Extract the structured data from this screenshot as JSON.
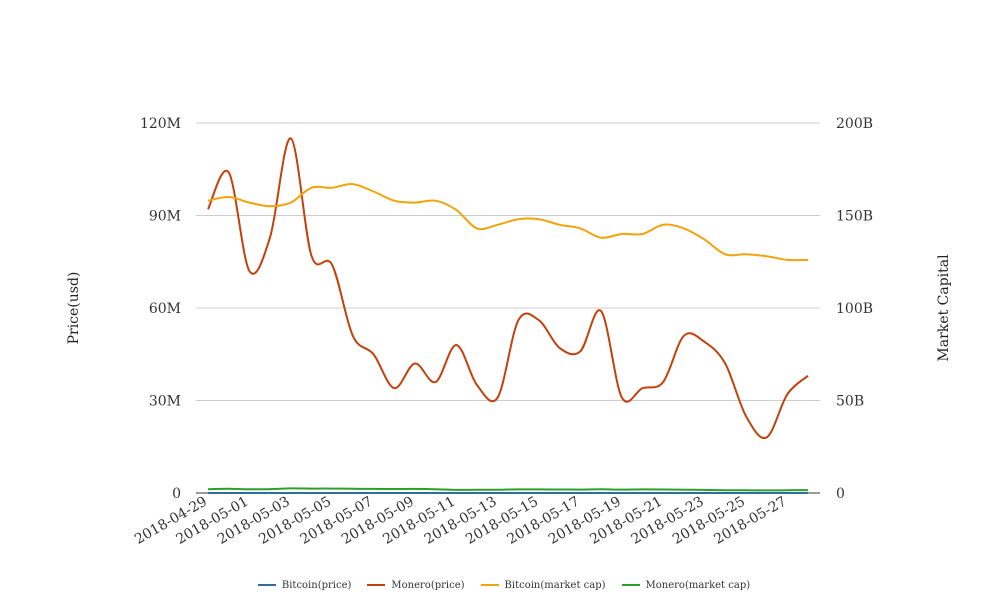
{
  "chart_data": {
    "type": "line",
    "title": "",
    "xlabel": "",
    "ylabel": "Price(usd)",
    "y2label": "Market Capital",
    "x": [
      "2018-04-29",
      "2018-04-30",
      "2018-05-01",
      "2018-05-02",
      "2018-05-03",
      "2018-05-04",
      "2018-05-05",
      "2018-05-06",
      "2018-05-07",
      "2018-05-08",
      "2018-05-09",
      "2018-05-10",
      "2018-05-11",
      "2018-05-12",
      "2018-05-13",
      "2018-05-14",
      "2018-05-15",
      "2018-05-16",
      "2018-05-17",
      "2018-05-18",
      "2018-05-19",
      "2018-05-20",
      "2018-05-21",
      "2018-05-22",
      "2018-05-23",
      "2018-05-24",
      "2018-05-25",
      "2018-05-26",
      "2018-05-27",
      "2018-05-28"
    ],
    "x_tick_labels": [
      "2018-04-29",
      "2018-05-01",
      "2018-05-03",
      "2018-05-05",
      "2018-05-07",
      "2018-05-09",
      "2018-05-11",
      "2018-05-13",
      "2018-05-15",
      "2018-05-17",
      "2018-05-19",
      "2018-05-21",
      "2018-05-23",
      "2018-05-25",
      "2018-05-27"
    ],
    "ylim": [
      0,
      120000000
    ],
    "y_ticks": [
      0,
      30000000,
      60000000,
      90000000,
      120000000
    ],
    "y_tick_labels": [
      "0",
      "30M",
      "60M",
      "90M",
      "120M"
    ],
    "y2lim": [
      0,
      200000000000
    ],
    "y2_ticks": [
      0,
      50000000000,
      100000000000,
      150000000000,
      200000000000
    ],
    "y2_tick_labels": [
      "0",
      "50B",
      "100B",
      "150B",
      "200B"
    ],
    "legend_position": "bottom",
    "grid": true,
    "series": [
      {
        "name": "Bitcoin(price)",
        "axis": "left",
        "color": "#2f6fa0",
        "values": [
          9300,
          9250,
          9100,
          9200,
          9700,
          9700,
          9850,
          9650,
          9400,
          9200,
          9300,
          9050,
          8450,
          8500,
          8750,
          8700,
          8500,
          8350,
          8050,
          8250,
          8200,
          8550,
          8400,
          8000,
          7550,
          7600,
          7450,
          7350,
          7350,
          7400
        ]
      },
      {
        "name": "Monero(price)",
        "axis": "left",
        "color": "#c2410c",
        "values": [
          92000000,
          104000000,
          72000000,
          83000000,
          115000000,
          77000000,
          74000000,
          51000000,
          45000000,
          34000000,
          42000000,
          36000000,
          48000000,
          35000000,
          31000000,
          56000000,
          56000000,
          47000000,
          46000000,
          59000000,
          31000000,
          34000000,
          36000000,
          51000000,
          49000000,
          42000000,
          25000000,
          18000000,
          32000000,
          38000000
        ]
      },
      {
        "name": "Bitcoin(market cap)",
        "axis": "right",
        "color": "#f0a30a",
        "values": [
          158000000000,
          160000000000,
          157000000000,
          155000000000,
          157000000000,
          165000000000,
          165000000000,
          167000000000,
          163000000000,
          158000000000,
          157000000000,
          158000000000,
          153000000000,
          143000000000,
          145000000000,
          148000000000,
          148000000000,
          145000000000,
          143000000000,
          138000000000,
          140000000000,
          140000000000,
          145000000000,
          143000000000,
          137000000000,
          129000000000,
          129000000000,
          128000000000,
          126000000000,
          126000000000
        ]
      },
      {
        "name": "Monero(market cap)",
        "axis": "right",
        "color": "#2ca02c",
        "values": [
          2050000000,
          2250000000,
          2000000000,
          2100000000,
          2500000000,
          2400000000,
          2400000000,
          2300000000,
          2200000000,
          2150000000,
          2200000000,
          2050000000,
          1700000000,
          1750000000,
          1800000000,
          1950000000,
          1950000000,
          1900000000,
          1850000000,
          2000000000,
          1850000000,
          1950000000,
          1900000000,
          1800000000,
          1650000000,
          1500000000,
          1450000000,
          1400000000,
          1500000000,
          1550000000
        ]
      }
    ]
  }
}
